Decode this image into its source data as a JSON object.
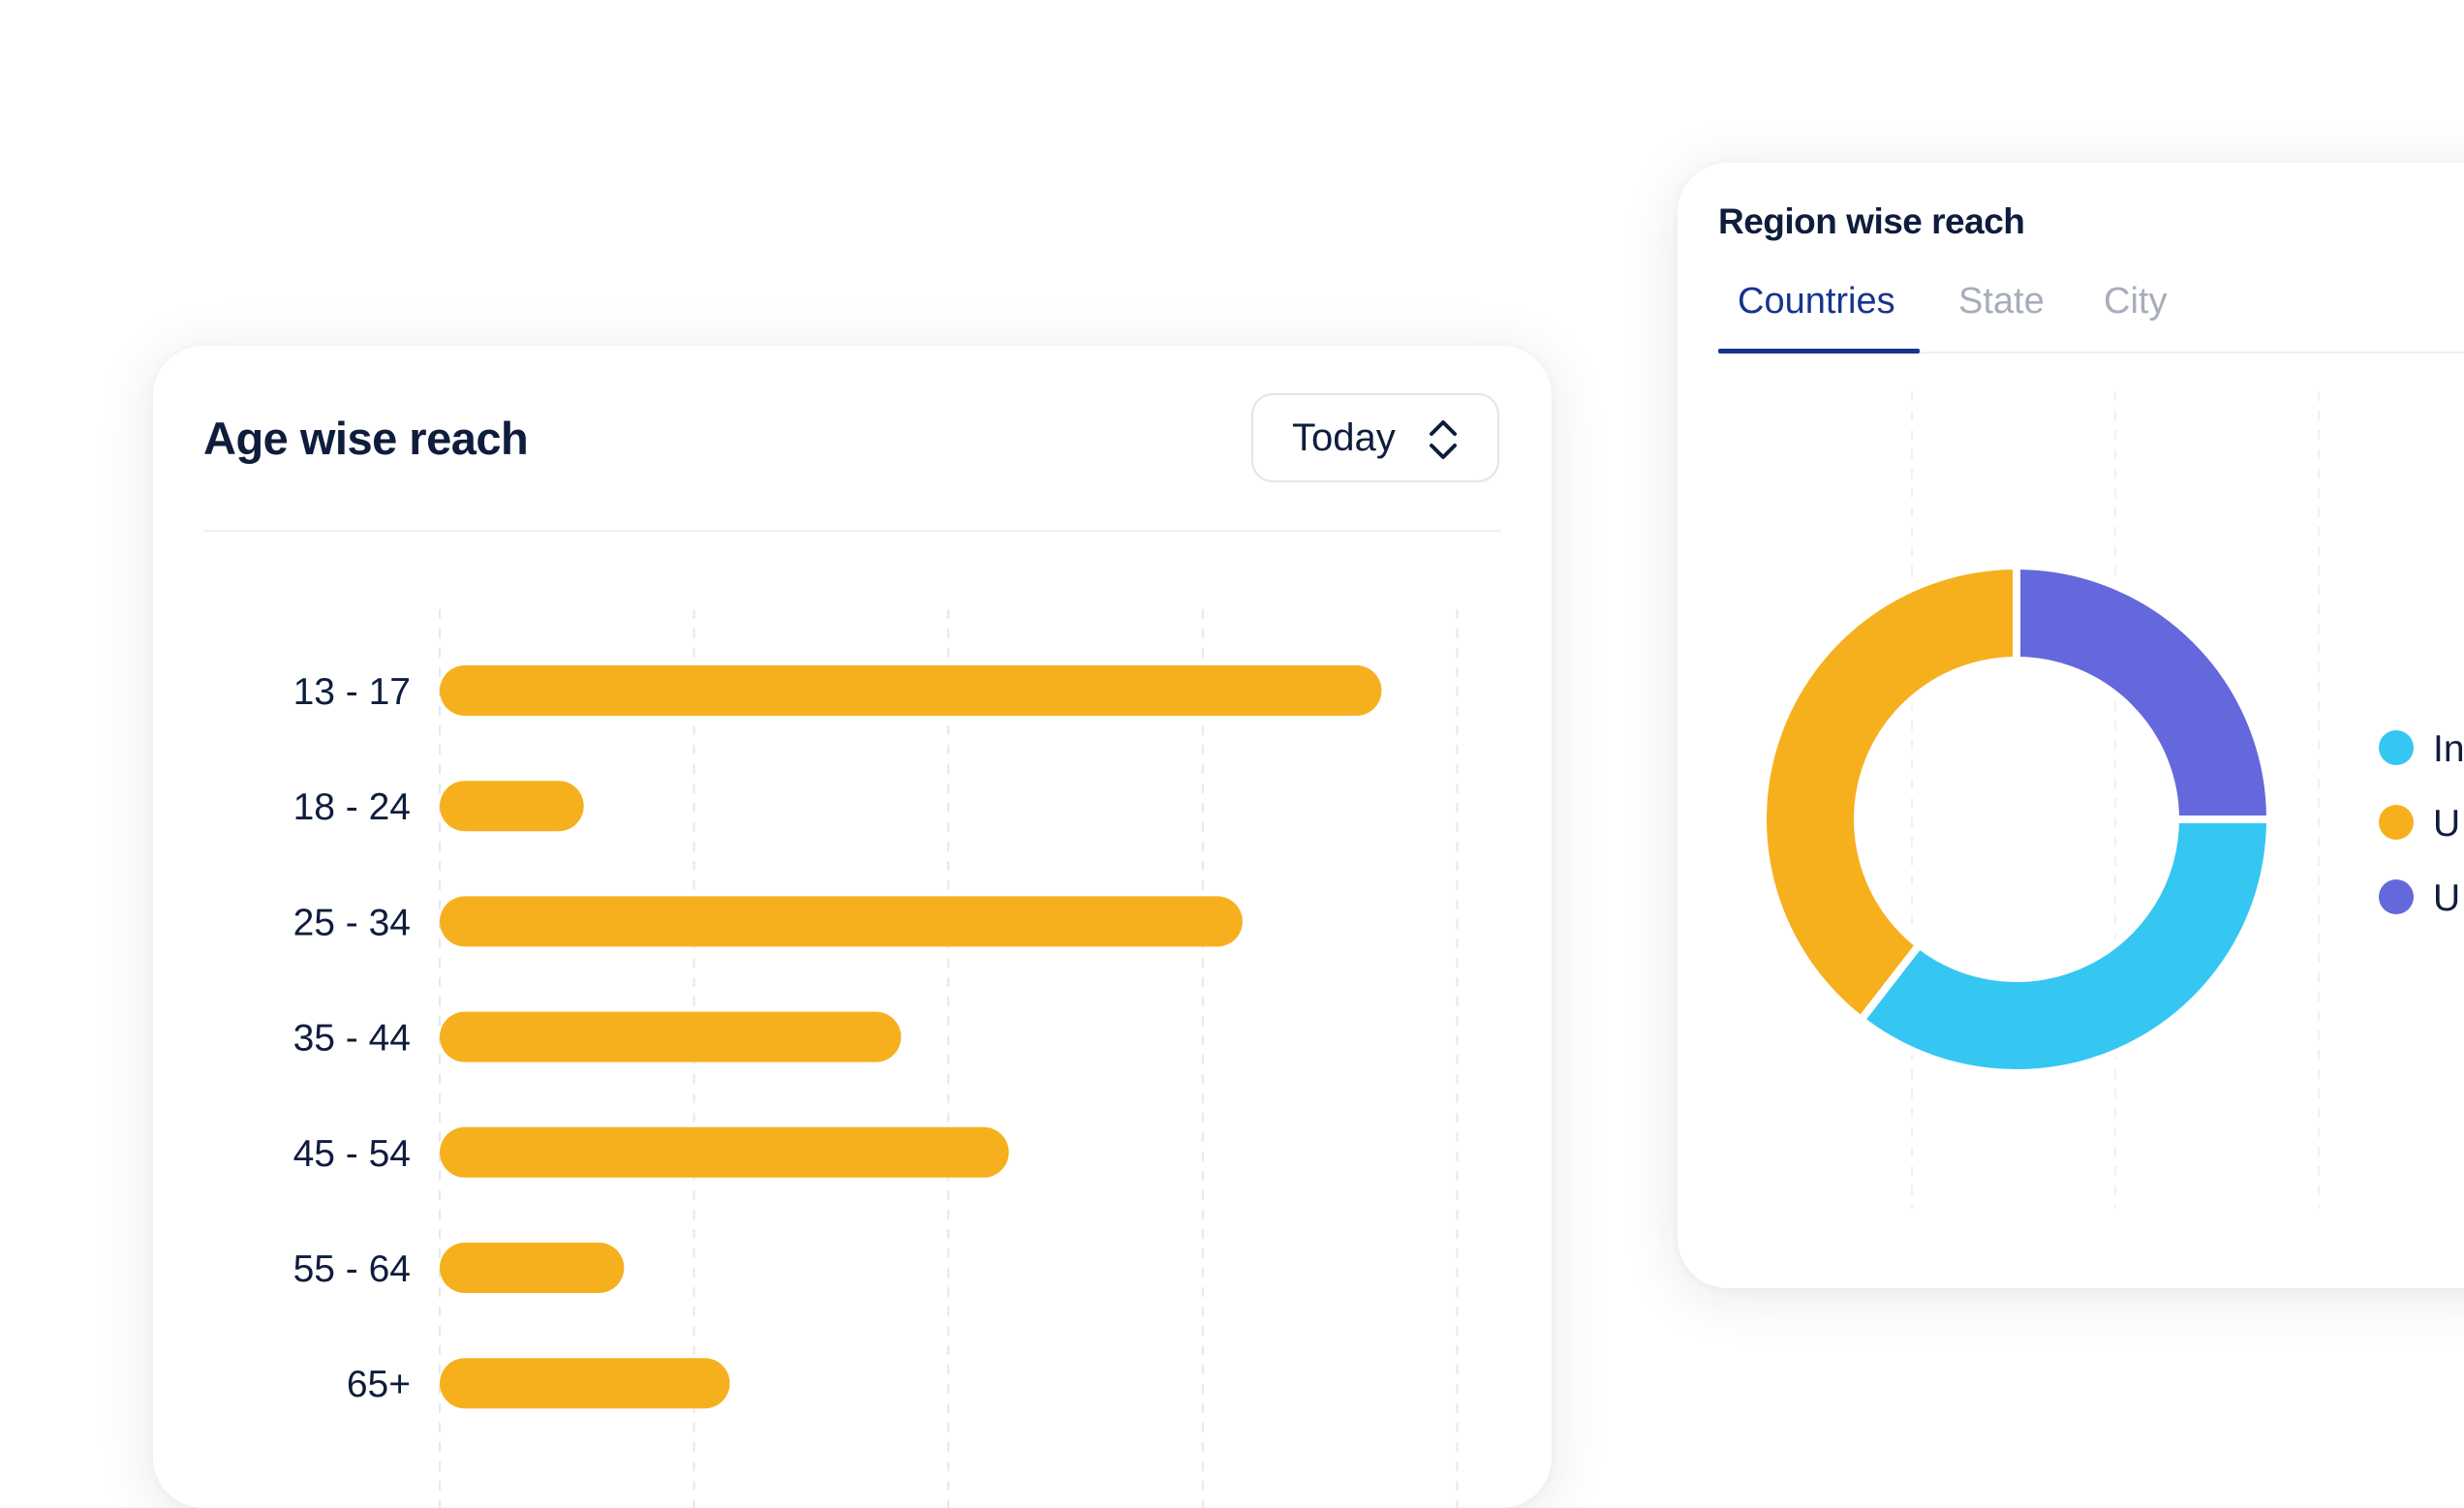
{
  "age_card": {
    "title": "Age wise reach",
    "dropdown": {
      "selected": "Today",
      "icon": "chevron-up-down-icon"
    }
  },
  "region_card": {
    "title": "Region wise reach",
    "tabs": [
      {
        "label": "Countries",
        "active": true
      },
      {
        "label": "State",
        "active": false
      },
      {
        "label": "City",
        "active": false
      }
    ],
    "legend": [
      "In",
      "U",
      "U"
    ]
  },
  "colors": {
    "bar": "#f6b01e",
    "navy_text": "#0f1d3d",
    "tab_active": "#16348f",
    "tab_inactive": "#a7adba",
    "cyan": "#35c6f2",
    "amber": "#f6b01e",
    "purple": "#6468dc"
  },
  "chart_data": [
    {
      "type": "bar",
      "orientation": "horizontal",
      "categories": [
        "13 - 17",
        "18 - 24",
        "25 - 34",
        "35 - 44",
        "45 - 54",
        "55 - 64",
        "65+"
      ],
      "values": [
        0.935,
        0.143,
        0.797,
        0.458,
        0.565,
        0.183,
        0.288
      ],
      "grid": true
    },
    {
      "type": "pie",
      "variant": "donut",
      "slices": [
        {
          "label": "In",
          "value": 35.5,
          "color": "#35c6f2"
        },
        {
          "label": "U",
          "value": 39.5,
          "color": "#f6b01e"
        },
        {
          "label": "U",
          "value": 25.0,
          "color": "#6468dc"
        }
      ],
      "legend_position": "right"
    }
  ]
}
